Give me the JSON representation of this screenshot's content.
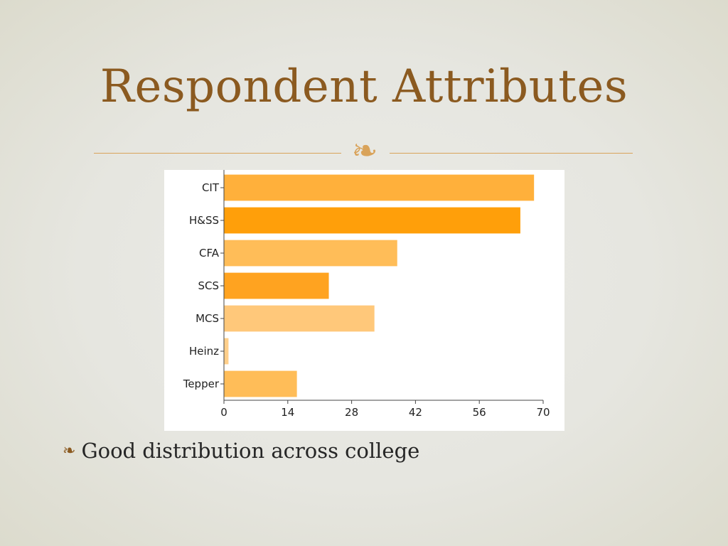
{
  "slide": {
    "title": "Respondent Attributes",
    "ornament_icon": "fleuron-ornament-icon",
    "bullet_icon": "fleuron-bullet-icon",
    "bullet_text": "Good distribution across college",
    "title_color": "#8b5a20",
    "accent_color": "#d9a35a"
  },
  "chart_data": {
    "type": "bar",
    "orientation": "horizontal",
    "title": "",
    "xlabel": "",
    "ylabel": "",
    "categories": [
      "CIT",
      "H&SS",
      "CFA",
      "SCS",
      "MCS",
      "Heinz",
      "Tepper"
    ],
    "values": [
      68,
      65,
      38,
      23,
      33,
      1,
      16
    ],
    "colors": [
      "#ffb03b",
      "#ff9f0a",
      "#ffbd58",
      "#ffa320",
      "#ffc87a",
      "#ffcf8a",
      "#ffbd58"
    ],
    "xlim": [
      0,
      70
    ],
    "xticks": [
      0,
      14,
      28,
      42,
      56,
      70
    ],
    "grid": false,
    "legend": "none"
  }
}
